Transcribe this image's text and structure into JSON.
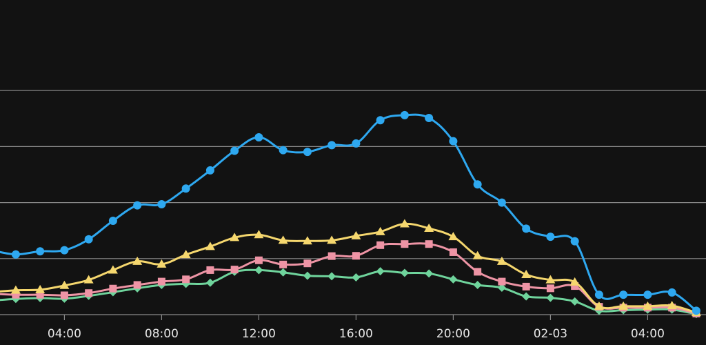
{
  "chart_data": {
    "type": "line",
    "title": "",
    "xlabel": "",
    "ylabel": "",
    "legend": "none",
    "grid": "horizontal",
    "x_tick_labels": [
      "04:00",
      "08:00",
      "12:00",
      "16:00",
      "20:00",
      "02-03",
      "04:00"
    ],
    "x_tick_hours": [
      4,
      8,
      12,
      16,
      20,
      24,
      28
    ],
    "xlim": [
      1.35,
      30.4
    ],
    "ylim": [
      0,
      100
    ],
    "gridlines_y": [
      0,
      20,
      40,
      60,
      80
    ],
    "x": [
      1,
      2,
      3,
      4,
      5,
      6,
      7,
      8,
      9,
      10,
      11,
      12,
      13,
      14,
      15,
      16,
      17,
      18,
      19,
      20,
      21,
      22,
      23,
      24,
      25,
      26,
      27,
      28,
      29,
      30
    ],
    "series": [
      {
        "color": "#2ea8f0",
        "marker": "circle",
        "values": [
          23,
          21.5,
          22.6,
          23,
          26.9,
          33.5,
          39,
          39.4,
          45,
          51.5,
          58.5,
          63.3,
          58.7,
          58.1,
          60.5,
          61.1,
          69.4,
          71.2,
          70.2,
          61.9,
          46.5,
          40,
          30.7,
          27.8,
          26.2,
          7.1,
          7.1,
          7.1,
          7.9,
          1.4
        ]
      },
      {
        "color": "#f5d76e",
        "marker": "triangle",
        "values": [
          8,
          8.7,
          8.9,
          10.4,
          12.4,
          15.9,
          19,
          18,
          21.4,
          24.3,
          27.5,
          28.5,
          26.5,
          26.3,
          26.5,
          28.1,
          29.6,
          32.4,
          30.8,
          27.8,
          21,
          19,
          14.3,
          12.4,
          11.6,
          3,
          3,
          3,
          3.2,
          0.7
        ]
      },
      {
        "color": "#ee94a5",
        "marker": "square",
        "values": [
          7.5,
          7.1,
          7.1,
          6.9,
          7.7,
          9.3,
          10.6,
          11.8,
          12.6,
          15.9,
          16.1,
          19.4,
          17.9,
          18.3,
          20.9,
          21,
          24.8,
          25.2,
          25.2,
          22.3,
          15.3,
          11.8,
          10,
          9.4,
          10.2,
          2.8,
          2.5,
          2.5,
          2.5,
          0.4
        ]
      },
      {
        "color": "#6fd49c",
        "marker": "diamond",
        "values": [
          5,
          5.6,
          5.9,
          5.7,
          6.7,
          8,
          9.4,
          10.6,
          11,
          11.4,
          15.3,
          15.9,
          15.1,
          13.9,
          13.7,
          13.3,
          15.5,
          14.9,
          14.7,
          12.6,
          10.6,
          9.6,
          6.5,
          6,
          4.7,
          1.4,
          1.6,
          1.8,
          1.8,
          0.2
        ]
      }
    ]
  }
}
